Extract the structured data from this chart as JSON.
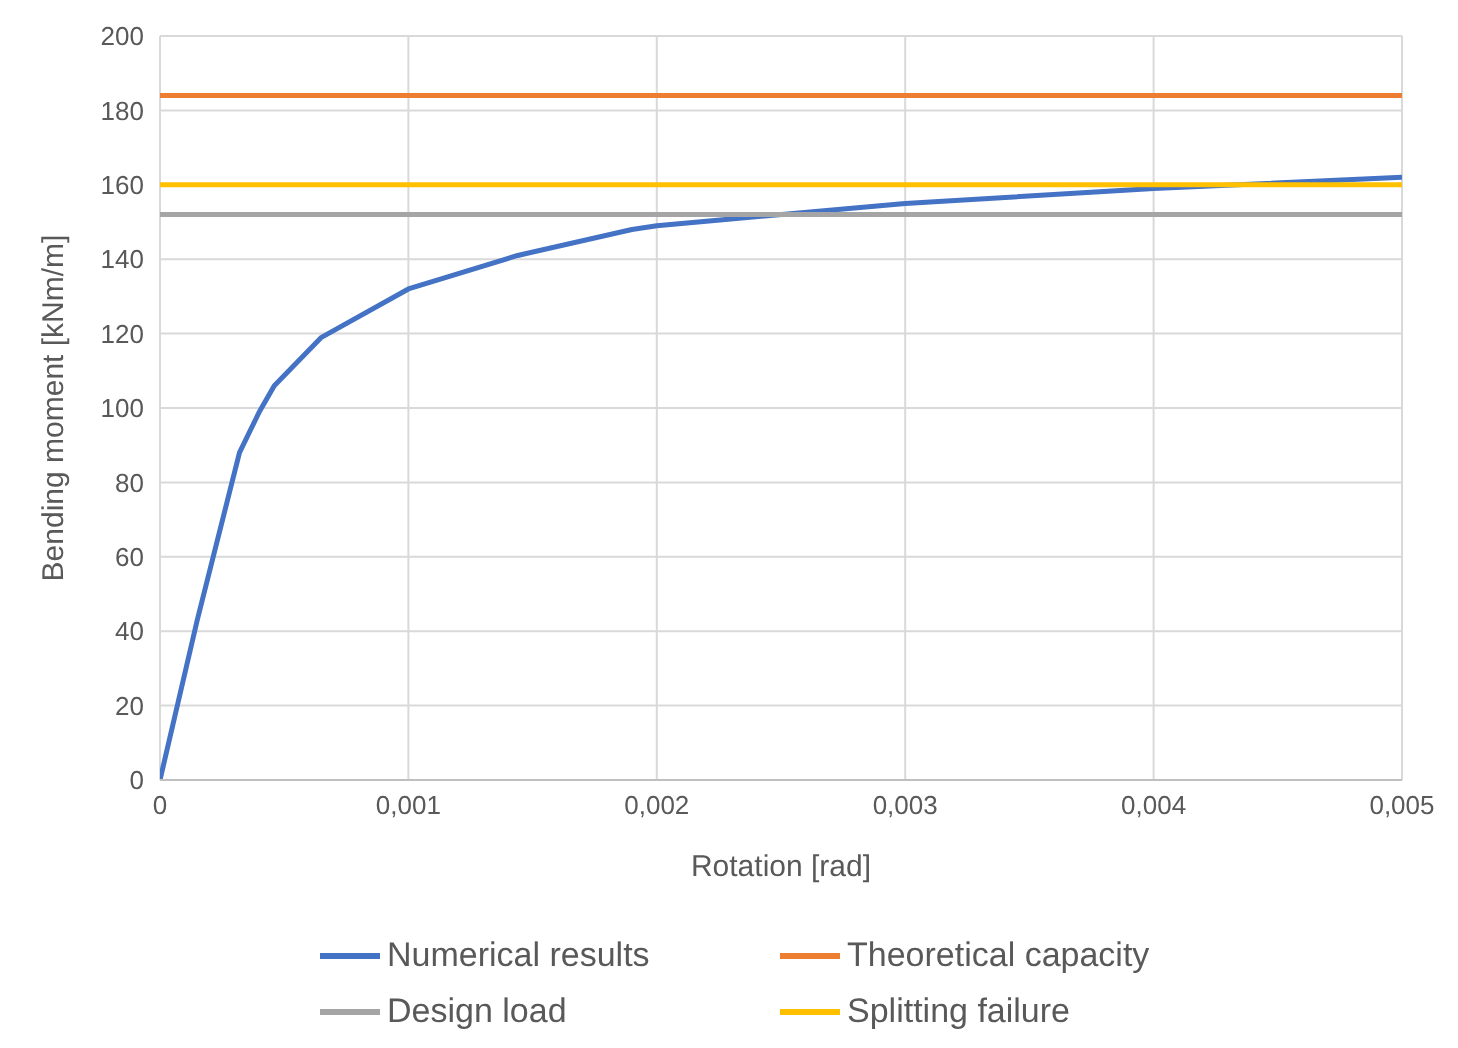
{
  "chart_data": {
    "type": "line",
    "xlabel": "Rotation [rad]",
    "ylabel": "Bending moment [kNm/m]",
    "xlim": [
      0,
      0.005
    ],
    "xticks": [
      0,
      {
        "value": 0.001,
        "label": "0,001"
      },
      {
        "value": 0.002,
        "label": "0,002"
      },
      {
        "value": 0.003,
        "label": "0,003"
      },
      {
        "value": 0.004,
        "label": "0,004"
      },
      {
        "value": 0.005,
        "label": "0,005"
      }
    ],
    "ylim": [
      0,
      200
    ],
    "yticks": [
      0,
      20,
      40,
      60,
      80,
      100,
      120,
      140,
      160,
      180,
      200
    ],
    "grid": true,
    "legend": "bottom",
    "marker": "none",
    "line_style": "solid",
    "series": [
      {
        "name": "Numerical results",
        "color": "#4472c4",
        "x": [
          0,
          0.00015,
          0.00032,
          0.0004,
          0.00046,
          0.00065,
          0.001,
          0.00144,
          0.0019,
          0.002,
          0.003,
          0.004,
          0.005
        ],
        "values": [
          0,
          43,
          88,
          99,
          106,
          119,
          132,
          141,
          148,
          149,
          155,
          159,
          162
        ]
      },
      {
        "name": "Theoretical capacity",
        "color": "#ed7d31",
        "x": [
          0,
          0.005
        ],
        "values": [
          184,
          184
        ]
      },
      {
        "name": "Design load",
        "color": "#a5a5a5",
        "x": [
          0,
          0.005
        ],
        "values": [
          152,
          152
        ]
      },
      {
        "name": "Splitting failure",
        "color": "#ffc000",
        "x": [
          0,
          0.005
        ],
        "values": [
          160,
          160
        ]
      }
    ]
  }
}
